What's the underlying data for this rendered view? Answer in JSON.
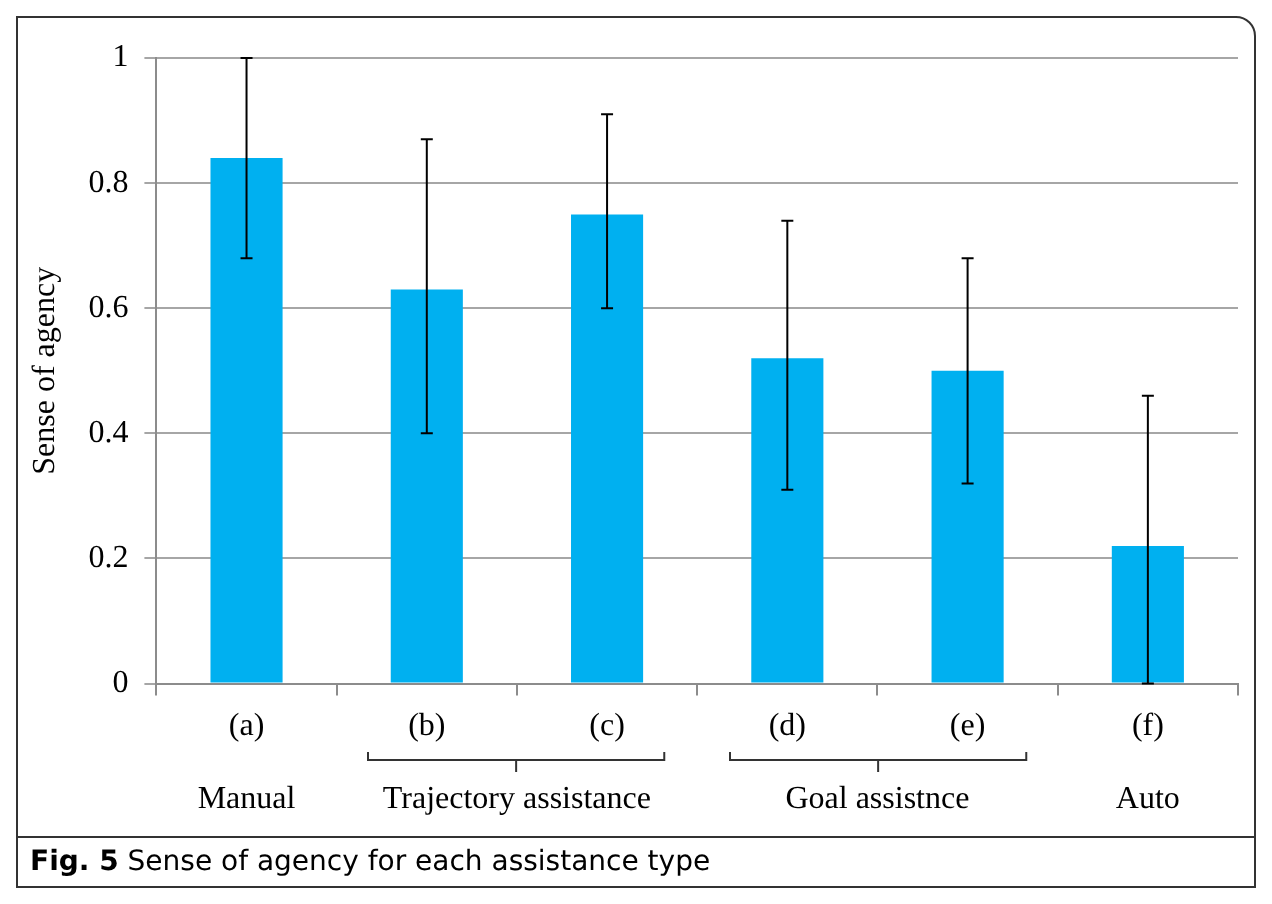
{
  "chart_data": {
    "type": "bar",
    "title": "Sense of agency for each assistance type",
    "ylabel": "Sense of agency",
    "categories": [
      "(a)",
      "(b)",
      "(c)",
      "(d)",
      "(e)",
      "(f)"
    ],
    "values": [
      0.84,
      0.63,
      0.75,
      0.52,
      0.5,
      0.22
    ],
    "color": "#00b0f0",
    "errors": [
      [
        0.68,
        1.0
      ],
      [
        0.4,
        0.87
      ],
      [
        0.6,
        0.91
      ],
      [
        0.31,
        0.74
      ],
      [
        0.32,
        0.68
      ],
      [
        0.0,
        0.46
      ]
    ],
    "ylim": [
      0,
      1
    ],
    "yticks": [
      0,
      0.2,
      0.4,
      0.6,
      0.8,
      1
    ],
    "grid": "y",
    "legend": false,
    "annotations": [
      "Manual",
      "Trajectory assistance",
      "Goal assistnce",
      "Auto",
      "Fig. 5"
    ]
  }
}
